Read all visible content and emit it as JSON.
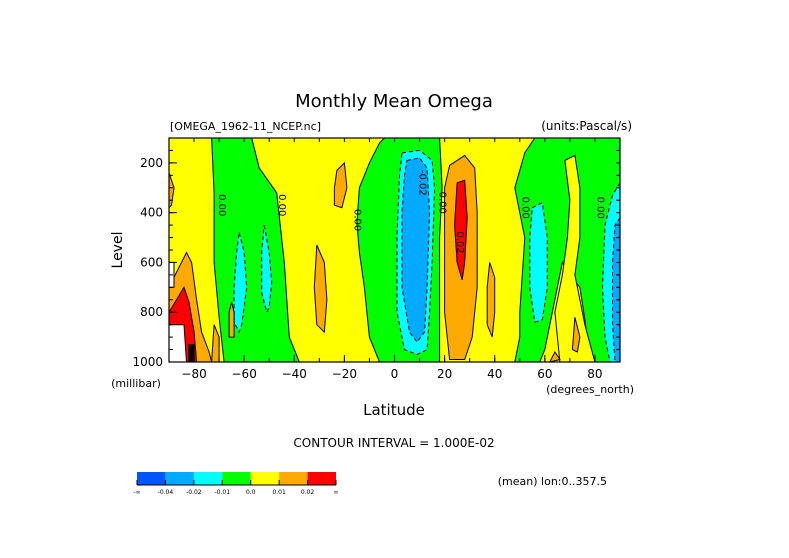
{
  "chart_data": {
    "type": "heatmap",
    "subtype": "filled-contour",
    "title": "Monthly Mean Omega",
    "file_label": "[OMEGA_1962-11_NCEP.nc]",
    "units_label": "(units:Pascal/s)",
    "xlabel": "Latitude",
    "xunits": "(degrees_north)",
    "ylabel": "Level",
    "yunits": "(millibar)",
    "xlim": [
      -90,
      90
    ],
    "ylim": [
      1000,
      100
    ],
    "xticks": [
      -80,
      -60,
      -40,
      -20,
      0,
      20,
      40,
      60,
      80
    ],
    "xtick_labels": [
      "−80",
      "−60",
      "−40",
      "−20",
      "0",
      "20",
      "40",
      "60",
      "80"
    ],
    "yticks": [
      200,
      400,
      600,
      800,
      1000
    ],
    "ytick_labels": [
      "200",
      "400",
      "600",
      "800",
      "1000"
    ],
    "contour_interval_text": "CONTOUR INTERVAL = 1.000E-02",
    "mean_text": "(mean) lon:0..357.5",
    "contour_labels": [
      {
        "text": "0.00",
        "lat": -70,
        "p": 370
      },
      {
        "text": "0.00",
        "lat": -46,
        "p": 370
      },
      {
        "text": "0.00",
        "lat": -16,
        "p": 430
      },
      {
        "text": "-0.02",
        "lat": 10,
        "p": 280
      },
      {
        "text": "0.00",
        "lat": 18,
        "p": 360
      },
      {
        "text": "0.02",
        "lat": 25,
        "p": 520
      },
      {
        "text": "0.00",
        "lat": 51,
        "p": 380
      },
      {
        "text": "0.00",
        "lat": 81,
        "p": 380
      }
    ],
    "colorbar": {
      "levels": [
        "-∞",
        "-0.04",
        "-0.02",
        "-0.01",
        "0.0",
        "0.01",
        "0.02",
        "∞"
      ],
      "colors": [
        "#0055ff",
        "#00aaff",
        "#00ffff",
        "#00ff00",
        "#ffff00",
        "#ffaa00",
        "#ff0000"
      ]
    },
    "background_color": "#ffff00",
    "regions": [
      {
        "name": "green-band-sh",
        "color": "#00ff00",
        "pts": [
          [
            -73,
            100
          ],
          [
            -57,
            100
          ],
          [
            -54,
            220
          ],
          [
            -47,
            320
          ],
          [
            -44,
            600
          ],
          [
            -42,
            900
          ],
          [
            -38,
            1000
          ],
          [
            -68,
            1000
          ],
          [
            -70,
            820
          ],
          [
            -72,
            600
          ],
          [
            -72,
            320
          ]
        ]
      },
      {
        "name": "cyan-sh-1",
        "color": "#00ffff",
        "dash": true,
        "pts": [
          [
            -62,
            480
          ],
          [
            -60,
            560
          ],
          [
            -59,
            700
          ],
          [
            -61,
            850
          ],
          [
            -62,
            880
          ],
          [
            -64,
            840
          ],
          [
            -64,
            700
          ],
          [
            -63,
            560
          ]
        ]
      },
      {
        "name": "cyan-sh-2",
        "color": "#00ffff",
        "dash": true,
        "pts": [
          [
            -52,
            450
          ],
          [
            -50,
            560
          ],
          [
            -49,
            680
          ],
          [
            -50,
            780
          ],
          [
            -51,
            800
          ],
          [
            -53,
            720
          ],
          [
            -53,
            560
          ]
        ]
      },
      {
        "name": "green-eq",
        "color": "#00ff00",
        "pts": [
          [
            -4,
            100
          ],
          [
            18,
            100
          ],
          [
            19,
            300
          ],
          [
            18,
            500
          ],
          [
            18,
            1000
          ],
          [
            -6,
            1000
          ],
          [
            -10,
            900
          ],
          [
            -12,
            700
          ],
          [
            -14,
            560
          ],
          [
            -15,
            440
          ],
          [
            -14,
            300
          ],
          [
            -10,
            200
          ],
          [
            -6,
            120
          ]
        ]
      },
      {
        "name": "cyan-eq",
        "color": "#00ffff",
        "dash": true,
        "pts": [
          [
            3,
            160
          ],
          [
            10,
            150
          ],
          [
            15,
            190
          ],
          [
            16,
            300
          ],
          [
            15,
            600
          ],
          [
            14,
            800
          ],
          [
            13,
            950
          ],
          [
            9,
            970
          ],
          [
            4,
            950
          ],
          [
            1,
            800
          ],
          [
            1,
            500
          ],
          [
            2,
            250
          ]
        ]
      },
      {
        "name": "blue-eq",
        "color": "#00aaff",
        "dash": true,
        "pts": [
          [
            5,
            190
          ],
          [
            10,
            180
          ],
          [
            13,
            220
          ],
          [
            14,
            400
          ],
          [
            13,
            700
          ],
          [
            12,
            880
          ],
          [
            9,
            920
          ],
          [
            6,
            880
          ],
          [
            3,
            700
          ],
          [
            3,
            400
          ],
          [
            4,
            250
          ]
        ]
      },
      {
        "name": "orange-nh-sub",
        "color": "#ffaa00",
        "pts": [
          [
            22,
            210
          ],
          [
            28,
            170
          ],
          [
            32,
            220
          ],
          [
            33,
            400
          ],
          [
            33,
            700
          ],
          [
            31,
            900
          ],
          [
            28,
            990
          ],
          [
            22,
            990
          ],
          [
            20,
            800
          ],
          [
            20,
            500
          ],
          [
            20,
            300
          ]
        ]
      },
      {
        "name": "red-nh-sub",
        "color": "#ff0000",
        "pts": [
          [
            25,
            280
          ],
          [
            28,
            270
          ],
          [
            29,
            420
          ],
          [
            28,
            600
          ],
          [
            27,
            670
          ],
          [
            25,
            600
          ],
          [
            24,
            450
          ]
        ]
      },
      {
        "name": "green-nh-mid",
        "color": "#00ff00",
        "pts": [
          [
            56,
            100
          ],
          [
            90,
            100
          ],
          [
            90,
            1000
          ],
          [
            78,
            1000
          ],
          [
            76,
            830
          ],
          [
            74,
            700
          ],
          [
            70,
            650
          ],
          [
            67,
            600
          ],
          [
            60,
            950
          ],
          [
            58,
            1000
          ],
          [
            48,
            1000
          ],
          [
            50,
            900
          ],
          [
            50,
            800
          ],
          [
            52,
            500
          ],
          [
            48,
            300
          ],
          [
            52,
            160
          ]
        ]
      },
      {
        "name": "yellow-nh-ridge",
        "color": "#ffff00",
        "pts": [
          [
            68,
            190
          ],
          [
            72,
            170
          ],
          [
            74,
            300
          ],
          [
            74,
            500
          ],
          [
            72,
            650
          ],
          [
            76,
            850
          ],
          [
            80,
            1000
          ],
          [
            66,
            1000
          ],
          [
            64,
            800
          ],
          [
            67,
            650
          ],
          [
            69,
            500
          ],
          [
            70,
            350
          ]
        ]
      },
      {
        "name": "cyan-nh-1",
        "color": "#00ffff",
        "dash": true,
        "pts": [
          [
            55,
            380
          ],
          [
            59,
            360
          ],
          [
            61,
            500
          ],
          [
            61,
            700
          ],
          [
            59,
            830
          ],
          [
            56,
            840
          ],
          [
            54,
            700
          ],
          [
            54,
            500
          ]
        ]
      },
      {
        "name": "cyan-nh-2",
        "color": "#00ffff",
        "dash": true,
        "pts": [
          [
            90,
            280
          ],
          [
            87,
            330
          ],
          [
            84,
            450
          ],
          [
            83,
            700
          ],
          [
            84,
            900
          ],
          [
            86,
            1000
          ],
          [
            90,
            1000
          ]
        ]
      },
      {
        "name": "blue-nh-2",
        "color": "#00aaff",
        "dash": true,
        "pts": [
          [
            90,
            420
          ],
          [
            88,
            450
          ],
          [
            87,
            600
          ],
          [
            87,
            850
          ],
          [
            88,
            1000
          ],
          [
            90,
            1000
          ]
        ]
      },
      {
        "name": "orange-sh-lower",
        "color": "#ffaa00",
        "pts": [
          [
            -90,
            700
          ],
          [
            -86,
            620
          ],
          [
            -83,
            560
          ],
          [
            -81,
            600
          ],
          [
            -79,
            750
          ],
          [
            -77,
            880
          ],
          [
            -74,
            960
          ],
          [
            -73,
            1000
          ],
          [
            -90,
            1000
          ]
        ]
      },
      {
        "name": "orange-sh-upper",
        "color": "#ffaa00",
        "pts": [
          [
            -90,
            240
          ],
          [
            -88,
            300
          ],
          [
            -89,
            370
          ],
          [
            -90,
            380
          ]
        ]
      },
      {
        "name": "red-sh",
        "color": "#ff0000",
        "pts": [
          [
            -90,
            800
          ],
          [
            -87,
            750
          ],
          [
            -84,
            700
          ],
          [
            -82,
            760
          ],
          [
            -80,
            880
          ],
          [
            -79,
            1000
          ],
          [
            -90,
            1000
          ]
        ]
      },
      {
        "name": "white-missing",
        "color": "#ffffff",
        "pts": [
          [
            -90,
            600
          ],
          [
            -88,
            600
          ],
          [
            -88,
            700
          ],
          [
            -90,
            700
          ]
        ]
      },
      {
        "name": "white-missing-2",
        "color": "#ffffff",
        "pts": [
          [
            -90,
            850
          ],
          [
            -84,
            850
          ],
          [
            -83,
            1000
          ],
          [
            -90,
            1000
          ]
        ]
      },
      {
        "name": "black-terrain",
        "color": "#000000",
        "pts": [
          [
            -82,
            930
          ],
          [
            -80,
            930
          ],
          [
            -80,
            1000
          ],
          [
            -82,
            1000
          ]
        ]
      },
      {
        "name": "orange-sh-2",
        "color": "#ffaa00",
        "pts": [
          [
            -72,
            850
          ],
          [
            -70,
            900
          ],
          [
            -70,
            1000
          ],
          [
            -73,
            1000
          ]
        ]
      },
      {
        "name": "orange-sh-3",
        "color": "#ffaa00",
        "pts": [
          [
            -65,
            760
          ],
          [
            -64,
            800
          ],
          [
            -64,
            900
          ],
          [
            -66,
            900
          ],
          [
            -66,
            800
          ]
        ]
      },
      {
        "name": "orange-sh-4",
        "color": "#ffaa00",
        "pts": [
          [
            -31,
            530
          ],
          [
            -28,
            600
          ],
          [
            -27,
            750
          ],
          [
            -28,
            880
          ],
          [
            -31,
            850
          ],
          [
            -32,
            700
          ]
        ]
      },
      {
        "name": "orange-sh-5",
        "color": "#ffaa00",
        "pts": [
          [
            -23,
            230
          ],
          [
            -20,
            200
          ],
          [
            -19,
            300
          ],
          [
            -21,
            380
          ],
          [
            -24,
            370
          ],
          [
            -24,
            300
          ]
        ]
      },
      {
        "name": "orange-nh-low",
        "color": "#ffaa00",
        "pts": [
          [
            38,
            600
          ],
          [
            40,
            660
          ],
          [
            40,
            800
          ],
          [
            39,
            900
          ],
          [
            37,
            850
          ],
          [
            37,
            700
          ]
        ]
      },
      {
        "name": "orange-nh-hi",
        "color": "#ffaa00",
        "pts": [
          [
            72,
            820
          ],
          [
            74,
            900
          ],
          [
            73,
            960
          ],
          [
            71,
            950
          ]
        ]
      },
      {
        "name": "orange-nh-bot",
        "color": "#ffaa00",
        "pts": [
          [
            64,
            960
          ],
          [
            66,
            990
          ],
          [
            62,
            1000
          ]
        ]
      }
    ]
  }
}
